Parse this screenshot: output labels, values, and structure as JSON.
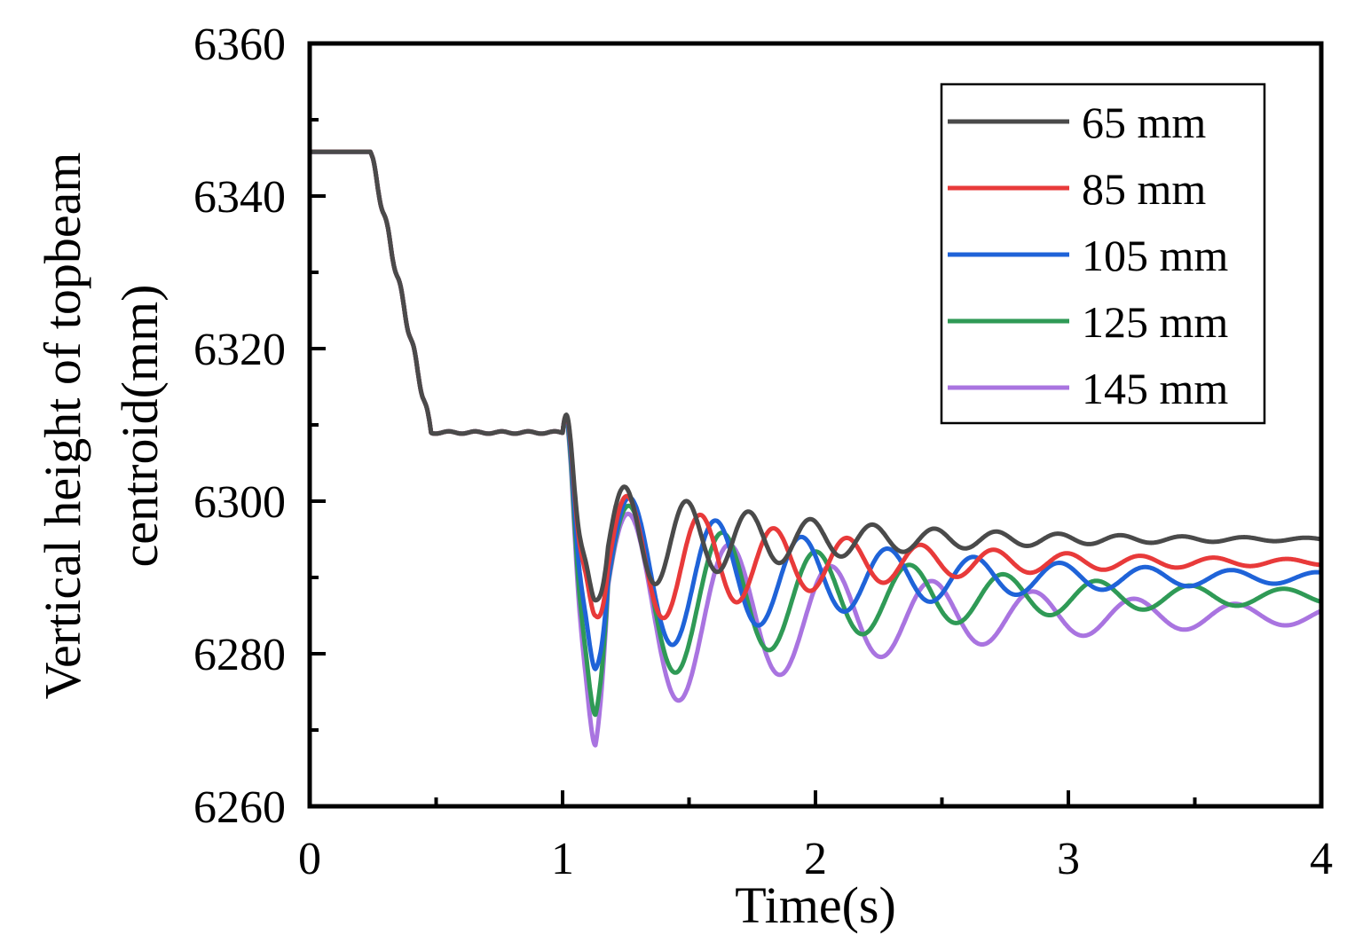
{
  "chart_data": {
    "type": "line",
    "title": "",
    "xlabel": "Time(s)",
    "ylabel_lines": [
      "Vertical height of topbeam",
      "centroid(mm)"
    ],
    "xlim": [
      0,
      4
    ],
    "ylim": [
      6260,
      6360
    ],
    "x_ticks": [
      0,
      1,
      2,
      3,
      4
    ],
    "x_tick_labels": [
      "0",
      "1",
      "2",
      "3",
      "4"
    ],
    "y_ticks": [
      6260,
      6280,
      6300,
      6320,
      6340,
      6360
    ],
    "y_tick_labels": [
      "6260",
      "6280",
      "6300",
      "6320",
      "6340",
      "6360"
    ],
    "grid": false,
    "legend_position": "top-right",
    "series": [
      {
        "name": "65 mm",
        "color": "#4a4a4a",
        "settle": 6295.0,
        "amp": 8.0,
        "period": 0.245,
        "decay": 1.3,
        "ph": 3.3,
        "dip": 6287.0
      },
      {
        "name": "85 mm",
        "color": "#e83a3a",
        "settle": 6292.0,
        "amp": 10.0,
        "period": 0.29,
        "decay": 1.15,
        "ph": 3.55,
        "dip": 6285.0
      },
      {
        "name": "105 mm",
        "color": "#1f63d8",
        "settle": 6290.0,
        "amp": 12.0,
        "period": 0.34,
        "decay": 1.0,
        "ph": 3.75,
        "dip": 6278.0
      },
      {
        "name": "125 mm",
        "color": "#2f9a56",
        "settle": 6287.5,
        "amp": 13.5,
        "period": 0.37,
        "decay": 0.95,
        "ph": 4.0,
        "dip": 6272.0
      },
      {
        "name": "145 mm",
        "color": "#a974e0",
        "settle": 6285.0,
        "amp": 15.0,
        "period": 0.4,
        "decay": 0.9,
        "ph": 4.2,
        "dip": 6268.0
      }
    ]
  }
}
